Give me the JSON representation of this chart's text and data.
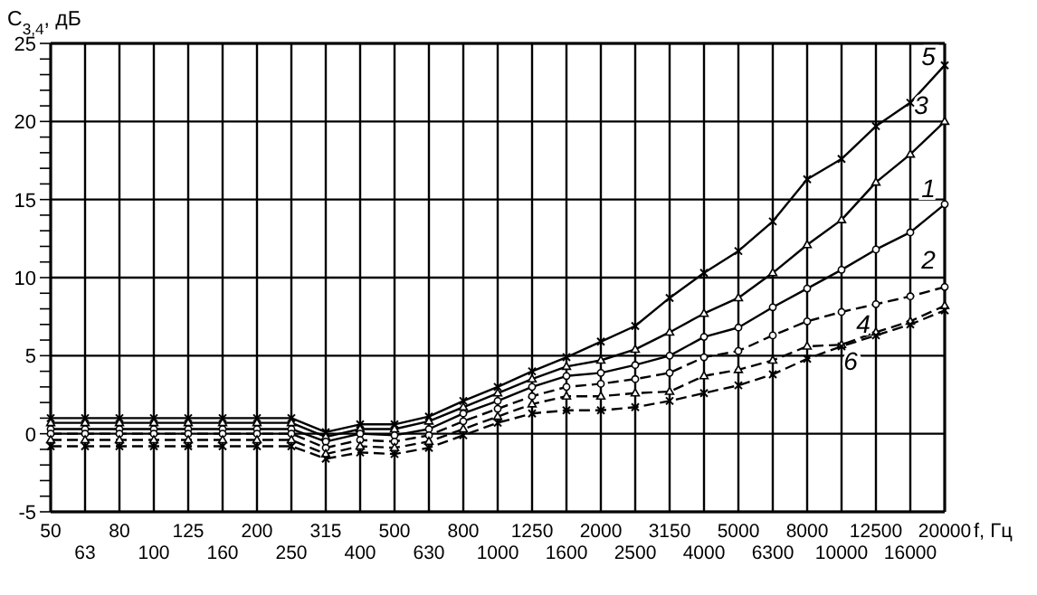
{
  "chart_data": {
    "type": "line",
    "ylabel": "C$_{3,4}$, дБ",
    "xlabel": "f, Гц",
    "categories": [
      "50",
      "63",
      "80",
      "100",
      "125",
      "160",
      "200",
      "250",
      "315",
      "400",
      "500",
      "630",
      "800",
      "1000",
      "1250",
      "1600",
      "2000",
      "2500",
      "3150",
      "4000",
      "5000",
      "6300",
      "8000",
      "10000",
      "12500",
      "16000",
      "20000"
    ],
    "ylim": [
      -5,
      25
    ],
    "yticks": [
      -5,
      0,
      5,
      10,
      15,
      20,
      25
    ],
    "grid": true,
    "series": [
      {
        "name": "5",
        "color": "#000000",
        "marker": "cross",
        "line_style": "solid",
        "values": [
          1,
          1,
          1,
          1,
          1,
          1,
          1,
          1,
          0.1,
          0.6,
          0.6,
          1.1,
          2.1,
          3,
          4,
          4.9,
          5.9,
          6.9,
          8.7,
          10.3,
          11.7,
          13.6,
          16.3,
          17.6,
          19.7,
          21.2,
          23.6
        ]
      },
      {
        "name": "3",
        "color": "#000000",
        "marker": "triangle",
        "line_style": "solid",
        "values": [
          0.7,
          0.7,
          0.7,
          0.7,
          0.7,
          0.7,
          0.7,
          0.7,
          -0.2,
          0.3,
          0.3,
          0.8,
          1.7,
          2.6,
          3.5,
          4.3,
          4.7,
          5.4,
          6.5,
          7.7,
          8.7,
          10.3,
          12.1,
          13.7,
          16.1,
          17.9,
          20
        ]
      },
      {
        "name": "1",
        "color": "#000000",
        "marker": "circle",
        "line_style": "solid",
        "values": [
          0.3,
          0.3,
          0.3,
          0.3,
          0.3,
          0.3,
          0.3,
          0.3,
          -0.5,
          0,
          -0.1,
          0.3,
          1.3,
          2.1,
          3,
          3.7,
          3.9,
          4.4,
          5,
          6.2,
          6.8,
          8.1,
          9.3,
          10.5,
          11.8,
          12.9,
          14.7
        ]
      },
      {
        "name": "2",
        "color": "#000000",
        "marker": "circle",
        "line_style": "dashed",
        "values": [
          0,
          0,
          0,
          0,
          0,
          0,
          0,
          0,
          -0.9,
          -0.4,
          -0.5,
          -0.1,
          0.8,
          1.6,
          2.4,
          3,
          3.2,
          3.5,
          3.9,
          4.9,
          5.3,
          6.3,
          7.2,
          7.8,
          8.3,
          8.8,
          9.4
        ]
      },
      {
        "name": "4",
        "color": "#000000",
        "marker": "triangle",
        "line_style": "dashed",
        "values": [
          -0.4,
          -0.4,
          -0.4,
          -0.4,
          -0.4,
          -0.4,
          -0.4,
          -0.4,
          -1.3,
          -0.8,
          -0.9,
          -0.5,
          0.3,
          1.1,
          1.9,
          2.4,
          2.4,
          2.6,
          2.7,
          3.7,
          4.1,
          4.7,
          5.6,
          5.7,
          6.5,
          7.2,
          8.2
        ]
      },
      {
        "name": "6",
        "color": "#000000",
        "marker": "cross",
        "line_style": "dashed",
        "values": [
          -0.8,
          -0.8,
          -0.8,
          -0.8,
          -0.8,
          -0.8,
          -0.8,
          -0.8,
          -1.6,
          -1.2,
          -1.3,
          -0.9,
          -0.1,
          0.7,
          1.3,
          1.5,
          1.5,
          1.7,
          2.1,
          2.6,
          3.1,
          3.8,
          4.8,
          5.6,
          6.3,
          7,
          7.9
        ]
      }
    ]
  }
}
